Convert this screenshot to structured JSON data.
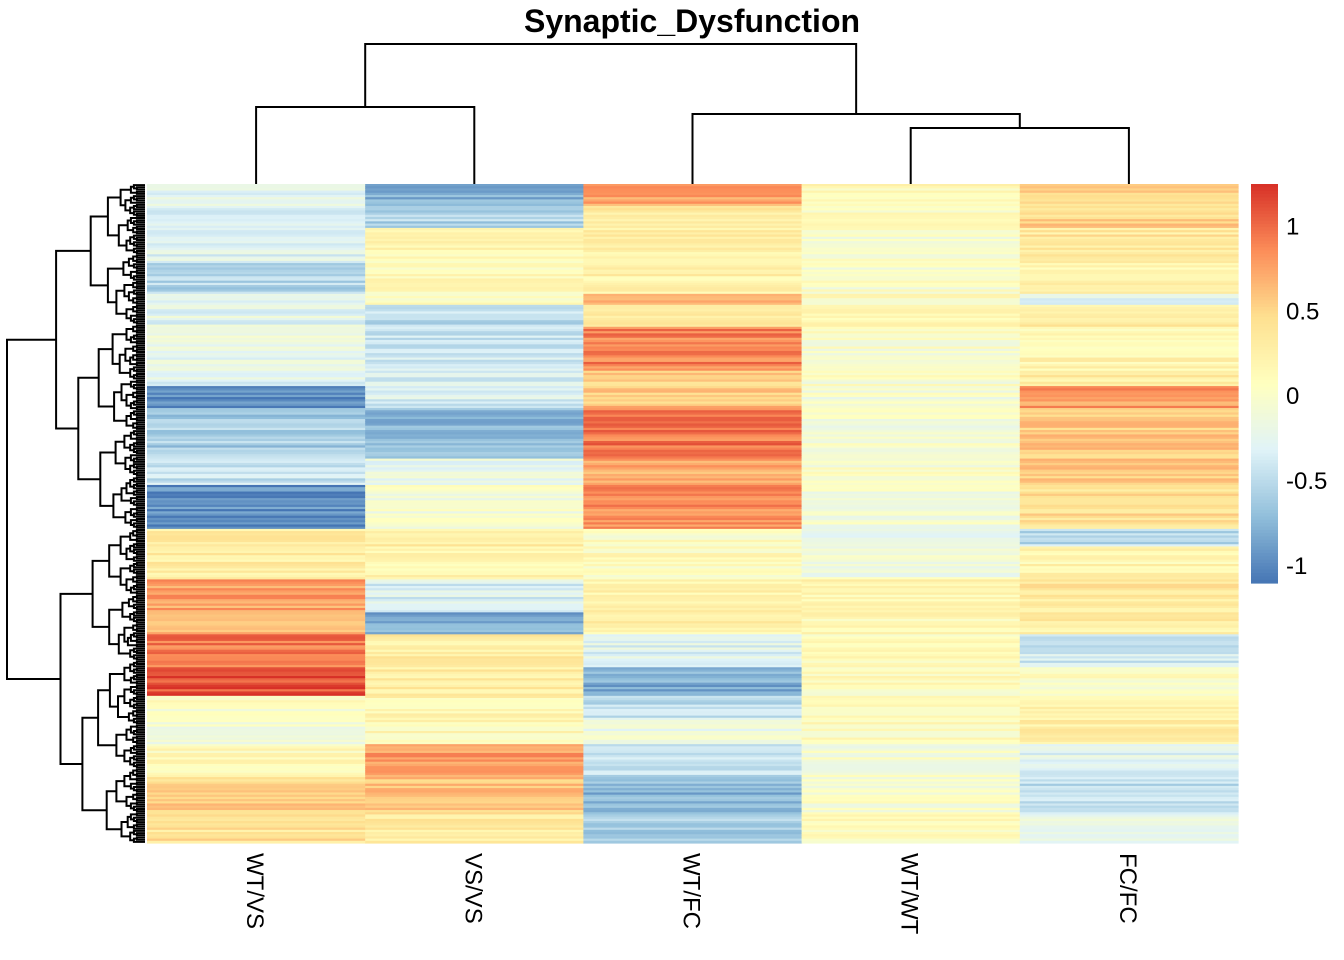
{
  "chart_data": {
    "type": "heatmap",
    "title": "Synaptic_Dysfunction",
    "columns": [
      "WT/VS",
      "VS/VS",
      "WT/FC",
      "WT/WT",
      "FC/FC"
    ],
    "row_count": 300,
    "value_range": [
      -1.1,
      1.25
    ],
    "colorbar": {
      "ticks": [
        {
          "value": 1,
          "label": "1"
        },
        {
          "value": 0.5,
          "label": "0.5"
        },
        {
          "value": 0,
          "label": "0"
        },
        {
          "value": -0.5,
          "label": "-0.5"
        },
        {
          "value": -1,
          "label": "-1"
        }
      ],
      "colors": [
        "#4575b4",
        "#91bfdb",
        "#e0f3f8",
        "#ffffbf",
        "#fee090",
        "#fc8d59",
        "#d73027"
      ]
    },
    "column_dendrogram": [
      {
        "left": "WT/VS",
        "right": "VS/VS",
        "height": 0.55
      },
      {
        "left": "WT/WT",
        "right": "FC/FC",
        "height": 0.4
      },
      {
        "left": "WT/FC",
        "right": "WT/WT+FC/FC",
        "height": 0.5
      },
      {
        "left": "WT/VS+VS/VS",
        "right": "WT/FC+WT/WT+FC/FC",
        "height": 1.0
      }
    ],
    "row_blocks": [
      {
        "start": 0,
        "end": 10,
        "values": [
          -0.25,
          -0.8,
          0.75,
          0.1,
          0.5
        ]
      },
      {
        "start": 10,
        "end": 20,
        "values": [
          -0.35,
          -0.55,
          0.3,
          0.1,
          0.5
        ]
      },
      {
        "start": 20,
        "end": 35,
        "values": [
          -0.3,
          0.15,
          0.3,
          0.0,
          0.35
        ]
      },
      {
        "start": 35,
        "end": 50,
        "values": [
          -0.55,
          0.1,
          0.25,
          0.0,
          0.2
        ]
      },
      {
        "start": 50,
        "end": 55,
        "values": [
          -0.3,
          0.05,
          0.75,
          0.1,
          -0.3
        ]
      },
      {
        "start": 55,
        "end": 65,
        "values": [
          -0.25,
          -0.5,
          0.25,
          0.15,
          0.3
        ]
      },
      {
        "start": 65,
        "end": 85,
        "values": [
          -0.2,
          -0.4,
          0.9,
          0.0,
          0.2
        ]
      },
      {
        "start": 85,
        "end": 92,
        "values": [
          -0.3,
          -0.35,
          0.5,
          0.0,
          0.3
        ]
      },
      {
        "start": 92,
        "end": 102,
        "values": [
          -0.95,
          -0.35,
          0.6,
          -0.05,
          0.8
        ]
      },
      {
        "start": 102,
        "end": 125,
        "values": [
          -0.6,
          -0.75,
          0.95,
          -0.05,
          0.55
        ]
      },
      {
        "start": 125,
        "end": 137,
        "values": [
          -0.45,
          -0.2,
          0.7,
          0.0,
          0.6
        ]
      },
      {
        "start": 137,
        "end": 157,
        "values": [
          -0.95,
          -0.05,
          0.85,
          -0.05,
          0.45
        ]
      },
      {
        "start": 157,
        "end": 165,
        "values": [
          0.3,
          0.3,
          0.05,
          -0.15,
          -0.5
        ]
      },
      {
        "start": 165,
        "end": 180,
        "values": [
          0.3,
          0.2,
          0.1,
          -0.1,
          0.2
        ]
      },
      {
        "start": 180,
        "end": 195,
        "values": [
          0.75,
          -0.35,
          0.25,
          0.2,
          0.35
        ]
      },
      {
        "start": 195,
        "end": 205,
        "values": [
          0.6,
          -0.8,
          0.25,
          0.15,
          0.3
        ]
      },
      {
        "start": 205,
        "end": 220,
        "values": [
          0.95,
          0.3,
          -0.3,
          0.1,
          -0.4
        ]
      },
      {
        "start": 220,
        "end": 233,
        "values": [
          1.1,
          0.3,
          -0.8,
          0.1,
          0.05
        ]
      },
      {
        "start": 233,
        "end": 243,
        "values": [
          0.05,
          0.2,
          -0.5,
          0.1,
          0.2
        ]
      },
      {
        "start": 243,
        "end": 255,
        "values": [
          -0.05,
          0.15,
          -0.15,
          0.1,
          0.3
        ]
      },
      {
        "start": 255,
        "end": 270,
        "values": [
          0.1,
          0.8,
          -0.5,
          -0.05,
          -0.3
        ]
      },
      {
        "start": 270,
        "end": 287,
        "values": [
          0.5,
          0.6,
          -0.75,
          0.0,
          -0.45
        ]
      },
      {
        "start": 287,
        "end": 300,
        "values": [
          0.4,
          0.35,
          -0.6,
          0.05,
          -0.2
        ]
      }
    ]
  }
}
